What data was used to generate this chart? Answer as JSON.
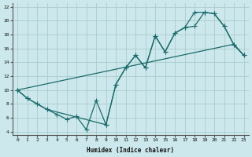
{
  "xlabel": "Humidex (Indice chaleur)",
  "bg_color": "#cce8ec",
  "grid_color": "#aacccc",
  "line_color": "#1a6b6b",
  "xlim": [
    -0.5,
    23.5
  ],
  "ylim": [
    3.5,
    22.5
  ],
  "xticks": [
    0,
    1,
    2,
    3,
    4,
    5,
    6,
    7,
    8,
    9,
    10,
    11,
    12,
    13,
    14,
    15,
    16,
    17,
    18,
    19,
    20,
    21,
    22,
    23
  ],
  "yticks": [
    4,
    6,
    8,
    10,
    12,
    14,
    16,
    18,
    20,
    22
  ],
  "line1_x": [
    0,
    1,
    2,
    3,
    4,
    5,
    6,
    7,
    8,
    9,
    10,
    11,
    12,
    13,
    14,
    15,
    16,
    17,
    18,
    19,
    20,
    21,
    22,
    23
  ],
  "line1_y": [
    10.0,
    8.8,
    8.0,
    7.2,
    6.5,
    5.8,
    6.2,
    4.3,
    8.5,
    5.0,
    10.8,
    13.2,
    15.0,
    13.2,
    17.8,
    15.5,
    18.2,
    19.0,
    19.2,
    21.2,
    21.0,
    19.2,
    16.5,
    15.0
  ],
  "line2_x": [
    0,
    1,
    2,
    3,
    4,
    5,
    6,
    7,
    8,
    9,
    10,
    11,
    12,
    13,
    14,
    15,
    16,
    17,
    18,
    19,
    20,
    21,
    22,
    23
  ],
  "line2_y": [
    10.0,
    10.3,
    10.6,
    10.9,
    11.2,
    11.5,
    11.8,
    12.1,
    12.4,
    12.7,
    13.0,
    13.3,
    13.6,
    13.9,
    14.2,
    14.5,
    14.8,
    15.1,
    15.4,
    15.7,
    16.0,
    16.3,
    16.6,
    15.0
  ],
  "line3_x": [
    0,
    1,
    2,
    3,
    9,
    10,
    11,
    12,
    13,
    14,
    15,
    16,
    17,
    18,
    19,
    20,
    21,
    22,
    23
  ],
  "line3_y": [
    10.0,
    8.8,
    8.0,
    7.2,
    5.0,
    10.8,
    13.2,
    15.0,
    13.2,
    17.8,
    15.5,
    18.2,
    19.0,
    21.2,
    21.2,
    21.0,
    19.2,
    16.5,
    15.0
  ]
}
